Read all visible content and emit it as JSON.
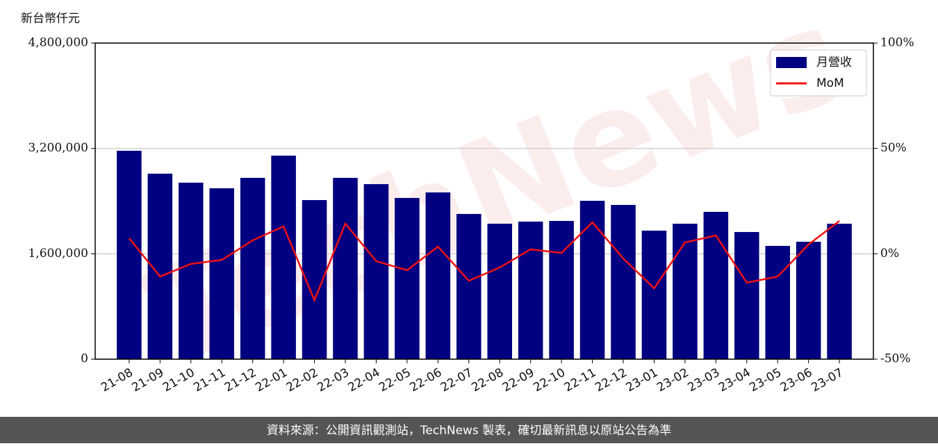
{
  "chart_data": {
    "type": "bar_line",
    "y_label": "新台幣仟元",
    "watermark": "TechNews",
    "footer": "資料來源：公開資訊觀測站，TechNews 製表，確切最新訊息以原站公告為準",
    "categories": [
      "21-08",
      "21-09",
      "21-10",
      "21-11",
      "21-12",
      "22-01",
      "22-02",
      "22-03",
      "22-04",
      "22-05",
      "22-06",
      "22-07",
      "22-08",
      "22-09",
      "22-10",
      "22-11",
      "22-12",
      "23-01",
      "23-02",
      "23-03",
      "23-04",
      "23-05",
      "23-06",
      "23-07"
    ],
    "series": [
      {
        "name": "月營收",
        "type": "bar",
        "color": "#000080",
        "values": [
          3165000,
          2817000,
          2680000,
          2595000,
          2753000,
          3091000,
          2416000,
          2753000,
          2658000,
          2448000,
          2532000,
          2205000,
          2057000,
          2089000,
          2099000,
          2405000,
          2342000,
          1952000,
          2057000,
          2237000,
          1931000,
          1720000,
          1783000,
          2057000
        ]
      },
      {
        "name": "MoM",
        "type": "line",
        "axis": "y2",
        "color": "#ee1111",
        "values": [
          7.4,
          -10.8,
          -4.8,
          -2.9,
          6.4,
          13.0,
          -22.0,
          14.3,
          -3.5,
          -7.8,
          3.4,
          -12.8,
          -6.5,
          2.1,
          0.4,
          14.9,
          -2.2,
          -16.4,
          5.4,
          8.7,
          -13.7,
          -10.8,
          4.4,
          15.6
        ]
      }
    ],
    "ylim": [
      0,
      4800000
    ],
    "yticks": [
      0,
      {
        "value": 1600000,
        "label": "1,600,000"
      },
      {
        "value": 3200000,
        "label": "3,200,000"
      },
      {
        "value": 4800000,
        "label": "4,800,000"
      }
    ],
    "y2lim": [
      -50,
      100
    ],
    "y2ticks": [
      {
        "value": -50,
        "label": "-50%"
      },
      {
        "value": 0,
        "label": "0%"
      },
      {
        "value": 50,
        "label": "50%"
      },
      {
        "value": 100,
        "label": "100%"
      }
    ],
    "grid": true,
    "legend": "upper right"
  }
}
